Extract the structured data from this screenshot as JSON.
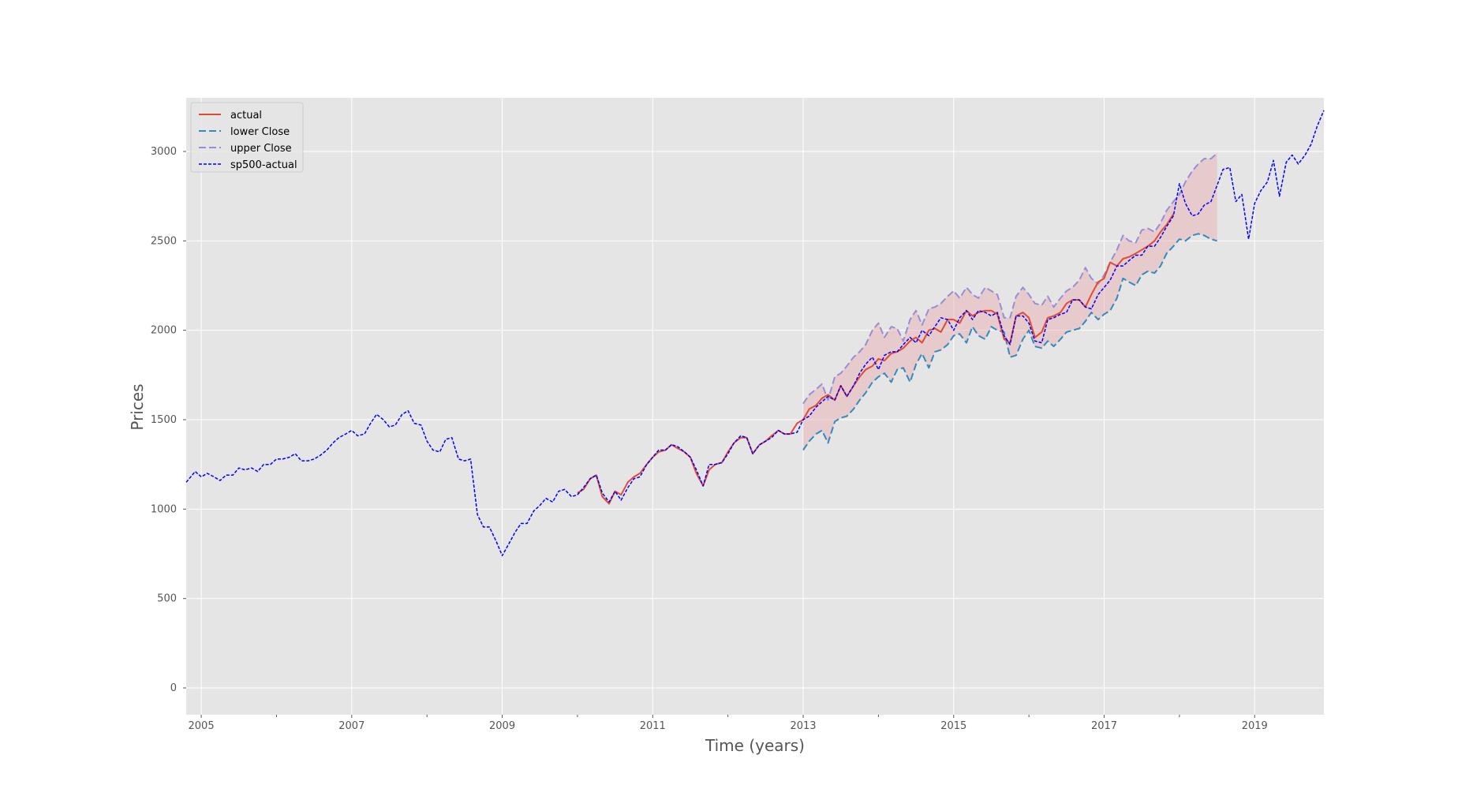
{
  "chart_data": {
    "type": "line",
    "title": "",
    "xlabel": "Time (years)",
    "ylabel": "Prices",
    "xlim": [
      2004.8,
      2019.92
    ],
    "ylim": [
      -150,
      3300
    ],
    "x_ticks": [
      2005,
      2007,
      2009,
      2011,
      2013,
      2015,
      2017,
      2019
    ],
    "x_tick_labels": [
      "2005",
      "2007",
      "2009",
      "2011",
      "2013",
      "2015",
      "2017",
      "2019"
    ],
    "x_minor_ticks": [
      2006,
      2008,
      2010,
      2012,
      2014,
      2016,
      2018
    ],
    "y_ticks": [
      0,
      500,
      1000,
      1500,
      2000,
      2500,
      3000
    ],
    "y_tick_labels": [
      "0",
      "500",
      "1000",
      "1500",
      "2000",
      "2500",
      "3000"
    ],
    "grid": true,
    "background": "#e5e5e5",
    "legend_position": "top-left",
    "band_fill_color": "#e8b4b8",
    "series": [
      {
        "name": "actual",
        "color": "#e24a33",
        "style": "solid",
        "x": [
          2010.0,
          2010.08,
          2010.17,
          2010.25,
          2010.33,
          2010.42,
          2010.5,
          2010.58,
          2010.67,
          2010.75,
          2010.83,
          2010.92,
          2011.0,
          2011.08,
          2011.17,
          2011.25,
          2011.33,
          2011.42,
          2011.5,
          2011.58,
          2011.67,
          2011.75,
          2011.83,
          2011.92,
          2012.0,
          2012.08,
          2012.17,
          2012.25,
          2012.33,
          2012.42,
          2012.5,
          2012.58,
          2012.67,
          2012.75,
          2012.83,
          2012.92,
          2013.0,
          2013.08,
          2013.17,
          2013.25,
          2013.33,
          2013.42,
          2013.5,
          2013.58,
          2013.67,
          2013.75,
          2013.83,
          2013.92,
          2014.0,
          2014.08,
          2014.17,
          2014.25,
          2014.33,
          2014.42,
          2014.5,
          2014.58,
          2014.67,
          2014.75,
          2014.83,
          2014.92,
          2015.0,
          2015.08,
          2015.17,
          2015.25,
          2015.33,
          2015.42,
          2015.5,
          2015.58,
          2015.67,
          2015.75,
          2015.83,
          2015.92,
          2016.0,
          2016.08,
          2016.17,
          2016.25,
          2016.33,
          2016.42,
          2016.5,
          2016.58,
          2016.67,
          2016.75,
          2016.83,
          2016.92,
          2017.0,
          2017.08,
          2017.17,
          2017.25,
          2017.33,
          2017.42,
          2017.5,
          2017.58,
          2017.67,
          2017.75,
          2017.83,
          2017.92
        ],
        "y": [
          1090,
          1110,
          1170,
          1190,
          1070,
          1030,
          1100,
          1080,
          1150,
          1180,
          1200,
          1250,
          1290,
          1320,
          1330,
          1360,
          1340,
          1320,
          1290,
          1200,
          1130,
          1220,
          1250,
          1260,
          1320,
          1370,
          1400,
          1400,
          1310,
          1360,
          1380,
          1410,
          1440,
          1420,
          1420,
          1480,
          1500,
          1560,
          1580,
          1620,
          1640,
          1610,
          1690,
          1630,
          1690,
          1740,
          1780,
          1800,
          1840,
          1830,
          1870,
          1880,
          1900,
          1940,
          1960,
          1930,
          2000,
          2010,
          1990,
          2060,
          2060,
          2040,
          2110,
          2080,
          2100,
          2110,
          2110,
          2090,
          1950,
          1930,
          2080,
          2100,
          2070,
          1960,
          1990,
          2070,
          2080,
          2100,
          2150,
          2170,
          2170,
          2130,
          2200,
          2270,
          2290,
          2380,
          2360,
          2400,
          2410,
          2430,
          2450,
          2470,
          2500,
          2550,
          2590,
          2650
        ]
      },
      {
        "name": "lower Close",
        "color": "#348abd",
        "style": "dashed",
        "x": [
          2013.0,
          2013.08,
          2013.17,
          2013.25,
          2013.33,
          2013.42,
          2013.5,
          2013.58,
          2013.67,
          2013.75,
          2013.83,
          2013.92,
          2014.0,
          2014.08,
          2014.17,
          2014.25,
          2014.33,
          2014.42,
          2014.5,
          2014.58,
          2014.67,
          2014.75,
          2014.83,
          2014.92,
          2015.0,
          2015.08,
          2015.17,
          2015.25,
          2015.33,
          2015.42,
          2015.5,
          2015.58,
          2015.67,
          2015.75,
          2015.83,
          2015.92,
          2016.0,
          2016.08,
          2016.17,
          2016.25,
          2016.33,
          2016.42,
          2016.5,
          2016.58,
          2016.67,
          2016.75,
          2016.83,
          2016.92,
          2017.0,
          2017.08,
          2017.17,
          2017.25,
          2017.33,
          2017.42,
          2017.5,
          2017.58,
          2017.67,
          2017.75,
          2017.83,
          2017.92,
          2018.0,
          2018.08,
          2018.17,
          2018.25,
          2018.33,
          2018.42,
          2018.5
        ],
        "y": [
          1330,
          1380,
          1420,
          1440,
          1370,
          1490,
          1510,
          1520,
          1560,
          1610,
          1650,
          1710,
          1740,
          1760,
          1710,
          1780,
          1790,
          1710,
          1810,
          1870,
          1790,
          1880,
          1890,
          1920,
          1970,
          1980,
          1930,
          2020,
          1970,
          1950,
          2020,
          2000,
          1990,
          1850,
          1860,
          1950,
          2000,
          1910,
          1900,
          1940,
          1910,
          1950,
          1990,
          2000,
          2010,
          2050,
          2100,
          2060,
          2090,
          2110,
          2180,
          2290,
          2270,
          2250,
          2310,
          2330,
          2320,
          2360,
          2430,
          2470,
          2510,
          2500,
          2530,
          2540,
          2530,
          2510,
          2500
        ]
      },
      {
        "name": "upper Close",
        "color": "#988ed5",
        "style": "dashed",
        "x": [
          2013.0,
          2013.08,
          2013.17,
          2013.25,
          2013.33,
          2013.42,
          2013.5,
          2013.58,
          2013.67,
          2013.75,
          2013.83,
          2013.92,
          2014.0,
          2014.08,
          2014.17,
          2014.25,
          2014.33,
          2014.42,
          2014.5,
          2014.58,
          2014.67,
          2014.75,
          2014.83,
          2014.92,
          2015.0,
          2015.08,
          2015.17,
          2015.25,
          2015.33,
          2015.42,
          2015.5,
          2015.58,
          2015.67,
          2015.75,
          2015.83,
          2015.92,
          2016.0,
          2016.08,
          2016.17,
          2016.25,
          2016.33,
          2016.42,
          2016.5,
          2016.58,
          2016.67,
          2016.75,
          2016.83,
          2016.92,
          2017.0,
          2017.08,
          2017.17,
          2017.25,
          2017.33,
          2017.42,
          2017.5,
          2017.58,
          2017.67,
          2017.75,
          2017.83,
          2017.92,
          2018.0,
          2018.08,
          2018.17,
          2018.25,
          2018.33,
          2018.42,
          2018.5
        ],
        "y": [
          1590,
          1640,
          1670,
          1700,
          1610,
          1740,
          1760,
          1800,
          1850,
          1880,
          1920,
          2000,
          2040,
          1960,
          2020,
          2010,
          1940,
          2060,
          2110,
          2030,
          2120,
          2130,
          2150,
          2190,
          2220,
          2180,
          2240,
          2200,
          2180,
          2240,
          2220,
          2200,
          2070,
          2070,
          2190,
          2240,
          2200,
          2150,
          2140,
          2190,
          2130,
          2180,
          2220,
          2240,
          2280,
          2350,
          2290,
          2260,
          2310,
          2380,
          2450,
          2530,
          2500,
          2490,
          2560,
          2570,
          2550,
          2600,
          2670,
          2720,
          2760,
          2830,
          2890,
          2930,
          2960,
          2960,
          2990
        ]
      },
      {
        "name": "sp500-actual",
        "color": "#0000ff",
        "style": "dotted",
        "x": [
          2004.8,
          2004.92,
          2005.0,
          2005.08,
          2005.17,
          2005.25,
          2005.33,
          2005.42,
          2005.5,
          2005.58,
          2005.67,
          2005.75,
          2005.83,
          2005.92,
          2006.0,
          2006.08,
          2006.17,
          2006.25,
          2006.33,
          2006.42,
          2006.5,
          2006.58,
          2006.67,
          2006.75,
          2006.83,
          2006.92,
          2007.0,
          2007.08,
          2007.17,
          2007.25,
          2007.33,
          2007.42,
          2007.5,
          2007.58,
          2007.67,
          2007.75,
          2007.83,
          2007.92,
          2008.0,
          2008.08,
          2008.17,
          2008.25,
          2008.33,
          2008.42,
          2008.5,
          2008.58,
          2008.67,
          2008.75,
          2008.83,
          2008.92,
          2009.0,
          2009.08,
          2009.17,
          2009.25,
          2009.33,
          2009.42,
          2009.5,
          2009.58,
          2009.67,
          2009.75,
          2009.83,
          2009.92,
          2010.0,
          2010.08,
          2010.17,
          2010.25,
          2010.33,
          2010.42,
          2010.5,
          2010.58,
          2010.67,
          2010.75,
          2010.83,
          2010.92,
          2011.0,
          2011.08,
          2011.17,
          2011.25,
          2011.33,
          2011.42,
          2011.5,
          2011.58,
          2011.67,
          2011.75,
          2011.83,
          2011.92,
          2012.0,
          2012.08,
          2012.17,
          2012.25,
          2012.33,
          2012.42,
          2012.5,
          2012.58,
          2012.67,
          2012.75,
          2012.83,
          2012.92,
          2013.0,
          2013.08,
          2013.17,
          2013.25,
          2013.33,
          2013.42,
          2013.5,
          2013.58,
          2013.67,
          2013.75,
          2013.83,
          2013.92,
          2014.0,
          2014.08,
          2014.17,
          2014.25,
          2014.33,
          2014.42,
          2014.5,
          2014.58,
          2014.67,
          2014.75,
          2014.83,
          2014.92,
          2015.0,
          2015.08,
          2015.17,
          2015.25,
          2015.33,
          2015.42,
          2015.5,
          2015.58,
          2015.67,
          2015.75,
          2015.83,
          2015.92,
          2016.0,
          2016.08,
          2016.17,
          2016.25,
          2016.33,
          2016.42,
          2016.5,
          2016.58,
          2016.67,
          2016.75,
          2016.83,
          2016.92,
          2017.0,
          2017.08,
          2017.17,
          2017.25,
          2017.33,
          2017.42,
          2017.5,
          2017.58,
          2017.67,
          2017.75,
          2017.83,
          2017.92,
          2018.0,
          2018.08,
          2018.17,
          2018.25,
          2018.33,
          2018.42,
          2018.5,
          2018.58,
          2018.67,
          2018.75,
          2018.83,
          2018.92,
          2019.0,
          2019.08,
          2019.17,
          2019.25,
          2019.33,
          2019.42,
          2019.5,
          2019.58,
          2019.67,
          2019.75,
          2019.83,
          2019.92
        ],
        "y": [
          1150,
          1210,
          1180,
          1200,
          1180,
          1160,
          1190,
          1190,
          1230,
          1220,
          1230,
          1210,
          1250,
          1250,
          1280,
          1280,
          1290,
          1310,
          1270,
          1270,
          1280,
          1300,
          1330,
          1370,
          1400,
          1420,
          1440,
          1410,
          1420,
          1480,
          1530,
          1500,
          1460,
          1470,
          1530,
          1550,
          1480,
          1470,
          1380,
          1330,
          1320,
          1390,
          1400,
          1280,
          1270,
          1280,
          970,
          900,
          900,
          820,
          740,
          800,
          870,
          920,
          920,
          990,
          1020,
          1060,
          1040,
          1100,
          1110,
          1070,
          1080,
          1120,
          1170,
          1190,
          1090,
          1040,
          1100,
          1050,
          1120,
          1170,
          1180,
          1250,
          1290,
          1330,
          1330,
          1360,
          1350,
          1320,
          1290,
          1220,
          1130,
          1250,
          1250,
          1260,
          1310,
          1370,
          1410,
          1400,
          1310,
          1360,
          1380,
          1400,
          1440,
          1420,
          1420,
          1430,
          1500,
          1520,
          1570,
          1600,
          1630,
          1610,
          1690,
          1630,
          1690,
          1760,
          1810,
          1850,
          1780,
          1860,
          1880,
          1880,
          1920,
          1960,
          1930,
          2000,
          1970,
          2020,
          2070,
          2060,
          2000,
          2070,
          2110,
          2060,
          2110,
          2100,
          2080,
          2100,
          1970,
          1920,
          2080,
          2080,
          2040,
          1940,
          1930,
          2060,
          2070,
          2090,
          2100,
          2170,
          2170,
          2130,
          2120,
          2200,
          2240,
          2280,
          2360,
          2360,
          2390,
          2420,
          2420,
          2470,
          2470,
          2520,
          2580,
          2640,
          2820,
          2710,
          2640,
          2650,
          2700,
          2720,
          2810,
          2900,
          2910,
          2720,
          2760,
          2510,
          2710,
          2780,
          2830,
          2950,
          2750,
          2940,
          2980,
          2930,
          2980,
          3040,
          3140,
          3230
        ]
      }
    ]
  }
}
